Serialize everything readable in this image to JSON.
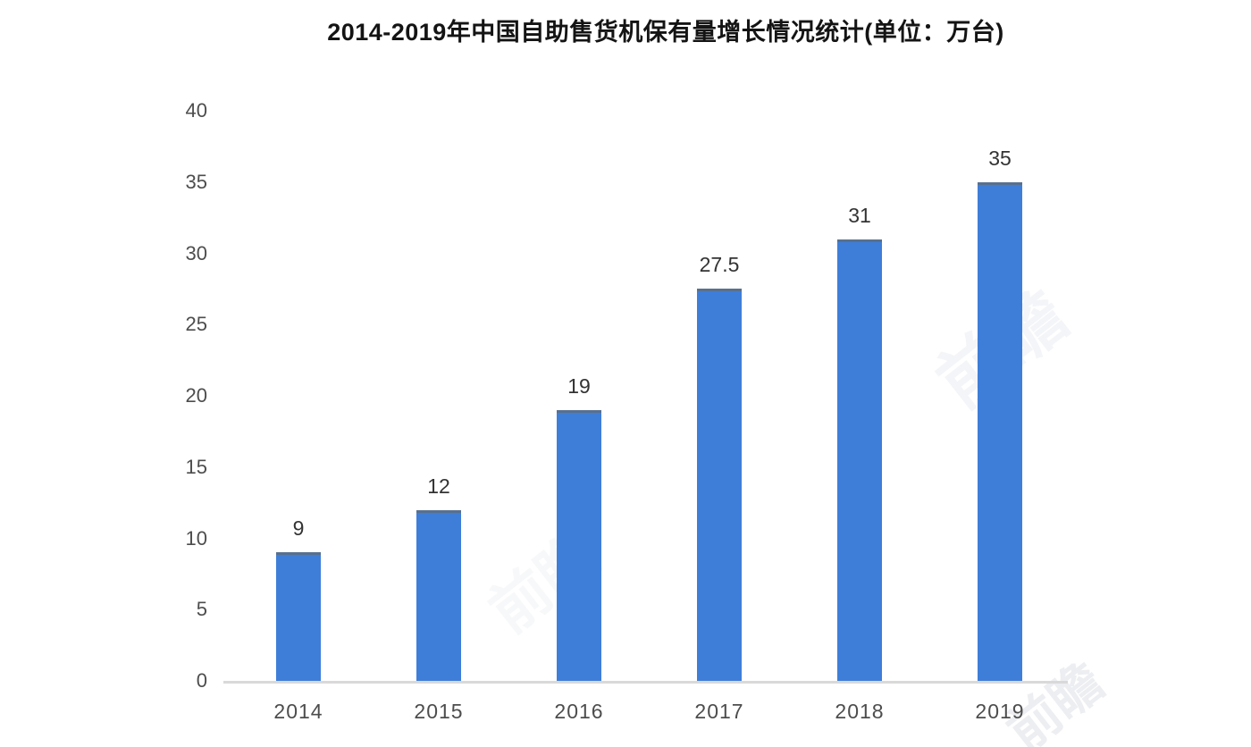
{
  "title": "2014-2019年中国自助售货机保有量增长情况统计(单位：万台)",
  "watermark": {
    "text": "前瞻"
  },
  "chart_data": {
    "type": "bar",
    "title": "2014-2019年中国自助售货机保有量增长情况统计(单位：万台)",
    "categories": [
      "2014",
      "2015",
      "2016",
      "2017",
      "2018",
      "2019"
    ],
    "values": [
      9,
      12,
      19,
      27.5,
      31,
      35
    ],
    "value_labels": [
      "9",
      "12",
      "19",
      "27.5",
      "31",
      "35"
    ],
    "xlabel": "",
    "ylabel": "",
    "ylim": [
      0,
      40
    ],
    "yticks": [
      0,
      5,
      10,
      15,
      20,
      25,
      30,
      35,
      40
    ],
    "grid": false,
    "legend": null,
    "bar_color": "#3e7ed9",
    "bar_top_edge_color": "#58708f",
    "axis_line_color": "#d9d9d9",
    "label_color": "#4d4d4d",
    "value_label_color": "#333333",
    "title_color": "#141414"
  }
}
